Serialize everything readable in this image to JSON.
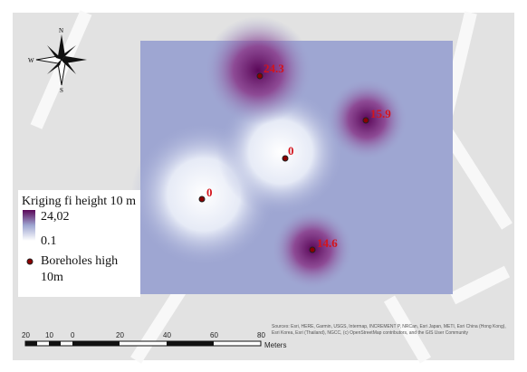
{
  "legend": {
    "title": "Kriging fi height 10 m",
    "high": "24,02",
    "low": "0.1",
    "points": "Boreholes high",
    "points_line2": "10m"
  },
  "boreholes": [
    {
      "label": "24.3"
    },
    {
      "label": "15.9"
    },
    {
      "label": "0"
    },
    {
      "label": "0"
    },
    {
      "label": "14.6"
    }
  ],
  "compass": {
    "n": "N",
    "s": "S",
    "w": "W"
  },
  "scale": {
    "labels": [
      "20",
      "10",
      "0",
      "20",
      "40",
      "60",
      "80"
    ],
    "unit": "Meters"
  },
  "attribution": "Sources: Esri, HERE, Garmin, USGS, Intermap, INCREMENT P, NRCan, Esri Japan, METI, Esri China (Hong Kong), Esri Korea, Esri (Thailand), NGCC, (c) OpenStreetMap contributors, and the GIS User Community"
}
